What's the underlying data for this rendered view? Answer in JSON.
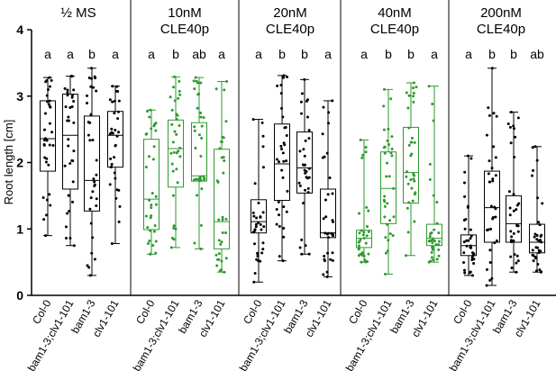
{
  "chart_data": {
    "type": "box",
    "ylabel": "Root length [cm]",
    "ylim": [
      0,
      4
    ],
    "yticks": [
      0,
      1,
      2,
      3,
      4
    ],
    "genotypes": [
      "Col-0",
      "bam1-3;clv1-101",
      "bam1-3",
      "clv1-101"
    ],
    "panels": [
      {
        "treatment": [
          "½ MS"
        ],
        "color": "#000000",
        "letters": [
          "a",
          "a",
          "b",
          "a"
        ],
        "boxes": [
          {
            "min": 0.9,
            "q1": 1.87,
            "median": 2.36,
            "q3": 2.93,
            "max": 3.28
          },
          {
            "min": 0.75,
            "q1": 1.6,
            "median": 2.41,
            "q3": 3.03,
            "max": 3.3
          },
          {
            "min": 0.3,
            "q1": 1.27,
            "median": 1.73,
            "q3": 2.7,
            "max": 3.42
          },
          {
            "min": 0.78,
            "q1": 1.93,
            "median": 2.41,
            "q3": 2.77,
            "max": 3.15
          }
        ]
      },
      {
        "treatment": [
          "10nM",
          "CLE40p"
        ],
        "color": "#2e9a2e",
        "letters": [
          "a",
          "b",
          "ab",
          "a"
        ],
        "boxes": [
          {
            "min": 0.62,
            "q1": 0.99,
            "median": 1.45,
            "q3": 2.35,
            "max": 2.79
          },
          {
            "min": 0.72,
            "q1": 1.63,
            "median": 2.21,
            "q3": 2.64,
            "max": 3.29
          },
          {
            "min": 0.7,
            "q1": 1.72,
            "median": 1.8,
            "q3": 2.6,
            "max": 3.28
          },
          {
            "min": 0.35,
            "q1": 0.7,
            "median": 1.11,
            "q3": 2.2,
            "max": 3.22
          }
        ]
      },
      {
        "treatment": [
          "20nM",
          "CLE40p"
        ],
        "color": "#000000",
        "letters": [
          "a",
          "b",
          "b",
          "a"
        ],
        "boxes": [
          {
            "min": 0.2,
            "q1": 0.94,
            "median": 1.11,
            "q3": 1.44,
            "max": 2.65
          },
          {
            "min": 0.52,
            "q1": 1.43,
            "median": 1.98,
            "q3": 2.58,
            "max": 3.31
          },
          {
            "min": 0.62,
            "q1": 1.54,
            "median": 1.92,
            "q3": 2.46,
            "max": 3.25
          },
          {
            "min": 0.28,
            "q1": 0.87,
            "median": 0.94,
            "q3": 1.6,
            "max": 2.93
          }
        ]
      },
      {
        "treatment": [
          "40nM",
          "CLE40p"
        ],
        "color": "#2e9a2e",
        "letters": [
          "a",
          "b",
          "b",
          "a"
        ],
        "boxes": [
          {
            "min": 0.5,
            "q1": 0.72,
            "median": 0.86,
            "q3": 0.98,
            "max": 2.34
          },
          {
            "min": 0.32,
            "q1": 1.08,
            "median": 1.61,
            "q3": 2.16,
            "max": 3.1
          },
          {
            "min": 0.6,
            "q1": 1.39,
            "median": 1.85,
            "q3": 2.53,
            "max": 3.2
          },
          {
            "min": 0.5,
            "q1": 0.75,
            "median": 0.86,
            "q3": 1.07,
            "max": 3.15
          }
        ]
      },
      {
        "treatment": [
          "200nM",
          "CLE40p"
        ],
        "color": "#000000",
        "letters": [
          "a",
          "b",
          "b",
          "ab"
        ],
        "boxes": [
          {
            "min": 0.3,
            "q1": 0.6,
            "median": 0.75,
            "q3": 0.91,
            "max": 2.1
          },
          {
            "min": 0.15,
            "q1": 0.8,
            "median": 1.32,
            "q3": 1.87,
            "max": 3.42
          },
          {
            "min": 0.35,
            "q1": 0.8,
            "median": 1.08,
            "q3": 1.5,
            "max": 2.76
          },
          {
            "min": 0.35,
            "q1": 0.64,
            "median": 0.8,
            "q3": 1.07,
            "max": 2.24
          }
        ]
      }
    ]
  }
}
